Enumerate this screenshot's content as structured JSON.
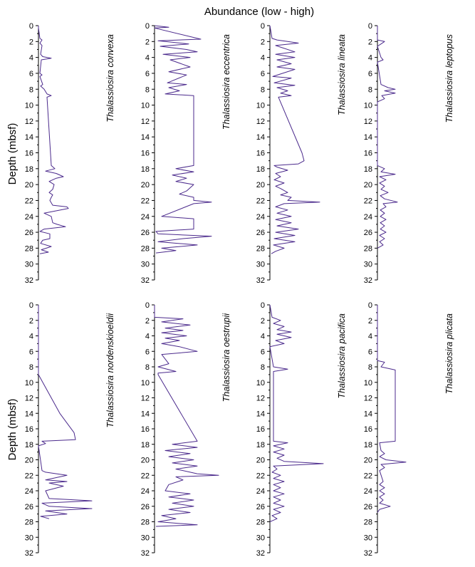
{
  "figure": {
    "title": "Abundance (low - high)",
    "ylabel": "Depth (mbsf)",
    "line_color": "#4b2a8c",
    "axis_color": "#000000"
  },
  "chart_data": [
    {
      "type": "line",
      "title": "Thalassiosira convexa",
      "xlabel": "",
      "ylabel": "Depth (mbsf)",
      "ylim": [
        0,
        32
      ],
      "y_ticks": [
        0,
        2,
        4,
        6,
        8,
        10,
        12,
        14,
        16,
        18,
        20,
        22,
        24,
        26,
        28,
        30,
        32
      ],
      "xlim": [
        0,
        10
      ],
      "series": [
        {
          "y": [
            0,
            0.3,
            1.6,
            1.8,
            2.2,
            2.5,
            3.6,
            3.9,
            4.1,
            4.3,
            6.0,
            6.2,
            6.4,
            7.4,
            7.6,
            8.0,
            8.6,
            8.8,
            9.0,
            17.6,
            18.0,
            18.3,
            18.6,
            19.0,
            19.2,
            19.6,
            20.0,
            20.6,
            21.0,
            21.3,
            21.6,
            22.0,
            22.6,
            22.8,
            23.0,
            23.6,
            24.0,
            24.8,
            25.0,
            25.3,
            25.6,
            25.9,
            26.2,
            26.8,
            27.0,
            27.4,
            27.8,
            28.2,
            28.5,
            28.7
          ],
          "x": [
            0,
            0,
            0.2,
            0.5,
            0.2,
            0.5,
            0.3,
            0.6,
            1.8,
            0.4,
            0.2,
            0.5,
            0.2,
            0.6,
            0.3,
            0.8,
            1.2,
            1.8,
            1.2,
            1.8,
            2.3,
            1.0,
            2.5,
            3.5,
            2.5,
            1.5,
            2.2,
            2.0,
            1.5,
            2.0,
            1.8,
            1.6,
            2.0,
            4.0,
            4.2,
            0.8,
            1.8,
            2.0,
            2.6,
            3.8,
            0.8,
            0.2,
            1.6,
            1.6,
            0.6,
            0.3,
            1.8,
            0.4,
            1.4,
            0.2
          ]
        }
      ]
    },
    {
      "type": "line",
      "title": "Thalassiosira eccentrica",
      "xlabel": "",
      "ylabel": "",
      "ylim": [
        0,
        32
      ],
      "y_ticks": [
        0,
        2,
        4,
        6,
        8,
        10,
        12,
        14,
        16,
        18,
        20,
        22,
        24,
        26,
        28,
        30,
        32
      ],
      "xlim": [
        0,
        10
      ],
      "series": [
        {
          "y": [
            0,
            0.2,
            0.3,
            1.7,
            1.9,
            2.3,
            2.6,
            3.0,
            3.3,
            3.6,
            4.0,
            4.3,
            5.2,
            5.8,
            6.2,
            7.2,
            7.4,
            7.8,
            8.2,
            8.6,
            8.8,
            17.6,
            18.0,
            18.4,
            18.8,
            19.2,
            19.6,
            20.0,
            20.8,
            21.2,
            21.6,
            22.0,
            22.2,
            22.4,
            24.0,
            24.3,
            25.0,
            25.6,
            25.9,
            26.2,
            26.5,
            26.8,
            27.2,
            27.6,
            28.0,
            28.3,
            28.6
          ],
          "x": [
            0,
            2.0,
            0,
            6.5,
            0.5,
            4.8,
            0.8,
            4.5,
            6.0,
            1.2,
            5.0,
            2.2,
            5.0,
            2.0,
            4.5,
            1.8,
            4.5,
            2.0,
            3.5,
            1.5,
            5.5,
            5.5,
            3.0,
            5.5,
            2.5,
            4.5,
            3.0,
            5.5,
            4.5,
            3.5,
            5.5,
            5.5,
            8.0,
            5.5,
            1.0,
            5.5,
            5.5,
            5.5,
            0.2,
            0.5,
            8.0,
            4.0,
            0.5,
            6.0,
            1.0,
            3.0,
            0.2
          ]
        }
      ]
    },
    {
      "type": "line",
      "title": "Thalassiosira lineata",
      "xlabel": "",
      "ylabel": "",
      "ylim": [
        0,
        32
      ],
      "y_ticks": [
        0,
        2,
        4,
        6,
        8,
        10,
        12,
        14,
        16,
        18,
        20,
        22,
        24,
        26,
        28,
        30,
        32
      ],
      "xlim": [
        0,
        10
      ],
      "series": [
        {
          "y": [
            0,
            1.6,
            1.8,
            2.0,
            2.2,
            2.5,
            3.3,
            3.6,
            4.0,
            4.3,
            4.8,
            5.2,
            5.5,
            6.4,
            6.6,
            7.2,
            7.5,
            7.8,
            8.2,
            8.5,
            8.8,
            9.0,
            16.0,
            17.0,
            17.4,
            17.6,
            17.8,
            18.2,
            18.6,
            19.0,
            19.4,
            19.8,
            20.2,
            20.5,
            21.0,
            21.3,
            21.6,
            22.0,
            22.2,
            22.4,
            22.8,
            23.2,
            23.6,
            24.0,
            24.4,
            24.8,
            25.2,
            25.6,
            26.0,
            26.4,
            26.8,
            27.2,
            27.6,
            28.0,
            28.4,
            28.7
          ],
          "x": [
            0,
            0.3,
            1.0,
            2.5,
            4.0,
            0.8,
            3.5,
            0.8,
            3.5,
            1.0,
            3.0,
            1.0,
            3.5,
            0.4,
            3.0,
            0.6,
            3.5,
            1.0,
            2.5,
            1.5,
            3.0,
            1.2,
            4.5,
            4.8,
            4.0,
            0.6,
            1.0,
            2.5,
            0.8,
            1.5,
            0.6,
            2.0,
            0.8,
            1.5,
            2.5,
            1.5,
            3.0,
            2.5,
            7.0,
            2.0,
            0.8,
            2.5,
            1.0,
            3.0,
            0.8,
            3.0,
            1.0,
            4.0,
            0.8,
            3.5,
            0.6,
            3.5,
            0.5,
            2.0,
            0.8,
            0.2
          ]
        }
      ]
    },
    {
      "type": "line",
      "title": "Thalassiosira leptopus",
      "xlabel": "",
      "ylabel": "",
      "ylim": [
        0,
        32
      ],
      "y_ticks": [
        0,
        2,
        4,
        6,
        8,
        10,
        12,
        14,
        16,
        18,
        20,
        22,
        24,
        26,
        28,
        30,
        32
      ],
      "xlim": [
        0,
        10
      ],
      "series": [
        {
          "y": [
            0,
            1.8,
            2.0,
            2.3,
            2.6,
            4.0,
            4.3,
            4.6,
            7.4,
            7.8,
            8.0,
            8.2,
            8.5,
            8.8,
            9.2,
            9.6,
            17.6,
            18.0,
            18.4,
            18.7,
            19.0,
            19.4,
            19.8,
            20.2,
            20.6,
            21.0,
            21.4,
            21.8,
            22.2,
            22.4,
            22.8,
            23.2,
            23.6,
            24.0,
            24.4,
            24.8,
            25.2,
            25.6,
            26.0,
            26.4,
            26.8,
            27.2,
            27.6,
            28.0
          ],
          "x": [
            0,
            0,
            1.0,
            0.5,
            0,
            0.5,
            0.8,
            0,
            0.5,
            1.5,
            2.5,
            1.0,
            2.5,
            0.6,
            1.0,
            0,
            0,
            1.0,
            0.5,
            2.5,
            0.3,
            1.2,
            0.3,
            1.0,
            0.5,
            1.5,
            0.4,
            1.0,
            2.8,
            0.8,
            1.2,
            0.4,
            1.0,
            0.4,
            1.2,
            0.4,
            1.0,
            0.4,
            1.2,
            0.3,
            1.0,
            0.3,
            0.8,
            0
          ]
        }
      ]
    },
    {
      "type": "line",
      "title": "Thalassiosira nordenskioeldii",
      "xlabel": "",
      "ylabel": "Depth (mbsf)",
      "ylim": [
        0,
        32
      ],
      "y_ticks": [
        0,
        2,
        4,
        6,
        8,
        10,
        12,
        14,
        16,
        18,
        20,
        22,
        24,
        26,
        28,
        30,
        32
      ],
      "xlim": [
        0,
        10
      ],
      "series": [
        {
          "y": [
            0,
            9.0,
            14.0,
            16.5,
            17.4,
            17.6,
            17.9,
            18.2,
            21.4,
            21.6,
            22.0,
            22.6,
            22.8,
            23.0,
            23.4,
            24.0,
            25.0,
            25.3,
            25.6,
            26.0,
            26.3,
            26.6,
            27.0,
            27.3,
            27.6
          ],
          "x": [
            0,
            0,
            3.0,
            5.0,
            5.2,
            0.5,
            1.0,
            0,
            0.5,
            1.0,
            4.0,
            1.0,
            4.0,
            1.5,
            3.5,
            1.0,
            1.5,
            7.5,
            0.5,
            1.5,
            7.5,
            1.0,
            4.0,
            0.3,
            1.5
          ]
        }
      ]
    },
    {
      "type": "line",
      "title": "Thalassiosira oestrupii",
      "xlabel": "",
      "ylabel": "",
      "ylim": [
        0,
        32
      ],
      "y_ticks": [
        0,
        2,
        4,
        6,
        8,
        10,
        12,
        14,
        16,
        18,
        20,
        22,
        24,
        26,
        28,
        30,
        32
      ],
      "xlim": [
        0,
        10
      ],
      "series": [
        {
          "y": [
            0,
            1.6,
            1.8,
            2.2,
            2.6,
            3.0,
            3.3,
            3.6,
            4.0,
            4.3,
            4.6,
            5.0,
            5.4,
            6.0,
            6.4,
            7.6,
            8.0,
            8.6,
            8.8,
            9.0,
            17.6,
            18.0,
            18.4,
            18.8,
            19.2,
            19.6,
            20.0,
            20.4,
            20.8,
            21.2,
            21.6,
            21.8,
            22.0,
            22.2,
            22.6,
            23.2,
            24.0,
            24.4,
            24.8,
            25.2,
            25.6,
            26.0,
            26.4,
            26.8,
            27.2,
            27.6,
            28.0,
            28.4,
            28.6
          ],
          "x": [
            0,
            0,
            4.0,
            1.0,
            5.0,
            1.5,
            4.0,
            1.0,
            4.5,
            1.5,
            3.5,
            1.0,
            3.5,
            6.0,
            1.0,
            2.0,
            0.5,
            3.0,
            0.5,
            0.5,
            6.0,
            2.5,
            6.0,
            1.5,
            5.0,
            2.0,
            5.5,
            2.5,
            6.0,
            3.0,
            5.0,
            6.0,
            9.0,
            3.0,
            4.0,
            2.0,
            1.5,
            5.0,
            2.0,
            5.5,
            2.5,
            5.5,
            2.0,
            5.0,
            1.0,
            3.0,
            0.5,
            6.0,
            0.2
          ]
        }
      ]
    },
    {
      "type": "line",
      "title": "Thalassiosira pacifica",
      "xlabel": "",
      "ylabel": "",
      "ylim": [
        0,
        32
      ],
      "y_ticks": [
        0,
        2,
        4,
        6,
        8,
        10,
        12,
        14,
        16,
        18,
        20,
        22,
        24,
        26,
        28,
        30,
        32
      ],
      "xlim": [
        0,
        10
      ],
      "series": [
        {
          "y": [
            0,
            1.6,
            2.0,
            2.4,
            2.8,
            3.2,
            3.5,
            3.8,
            4.2,
            4.6,
            5.0,
            5.4,
            8.0,
            8.3,
            8.6,
            9.0,
            17.6,
            17.8,
            18.2,
            18.6,
            19.0,
            19.4,
            19.8,
            20.2,
            20.5,
            20.8,
            21.2,
            21.6,
            22.0,
            22.4,
            22.8,
            23.2,
            23.6,
            24.0,
            24.4,
            24.8,
            25.2,
            25.6,
            26.0,
            26.4,
            26.8,
            27.2,
            27.6,
            28.0
          ],
          "x": [
            0,
            0.3,
            1.5,
            0.5,
            2.0,
            1.0,
            3.0,
            1.0,
            3.0,
            0.8,
            2.0,
            0,
            0.5,
            2.5,
            0.5,
            0.5,
            0.5,
            2.5,
            0.5,
            2.0,
            0.5,
            2.0,
            1.0,
            2.0,
            7.5,
            0.5,
            1.0,
            0.3,
            1.5,
            0.5,
            2.0,
            0.5,
            1.5,
            0.5,
            2.0,
            0.5,
            1.5,
            0.5,
            2.0,
            0.5,
            1.5,
            0.3,
            1.0,
            0
          ]
        }
      ]
    },
    {
      "type": "line",
      "title": "Thalassiosira plicata",
      "xlabel": "",
      "ylabel": "",
      "ylim": [
        0,
        32
      ],
      "y_ticks": [
        0,
        2,
        4,
        6,
        8,
        10,
        12,
        14,
        16,
        18,
        20,
        22,
        24,
        26,
        28,
        30,
        32
      ],
      "xlim": [
        0,
        10
      ],
      "series": [
        {
          "y": [
            0,
            7.2,
            7.4,
            8.0,
            8.4,
            17.6,
            17.8,
            18.8,
            19.2,
            19.6,
            20.0,
            20.3,
            20.6,
            21.0,
            21.4,
            22.8,
            23.2,
            23.6,
            24.0,
            24.4,
            24.8,
            25.2,
            25.6,
            26.0,
            26.4,
            26.8
          ],
          "x": [
            0,
            0,
            1.0,
            0.5,
            2.5,
            2.5,
            0.3,
            0.5,
            1.0,
            0.3,
            1.2,
            4.0,
            0.5,
            1.0,
            0.3,
            0.8,
            0.3,
            1.0,
            0.3,
            1.0,
            0.3,
            0.8,
            0.3,
            1.8,
            0.3,
            0
          ]
        }
      ]
    }
  ]
}
